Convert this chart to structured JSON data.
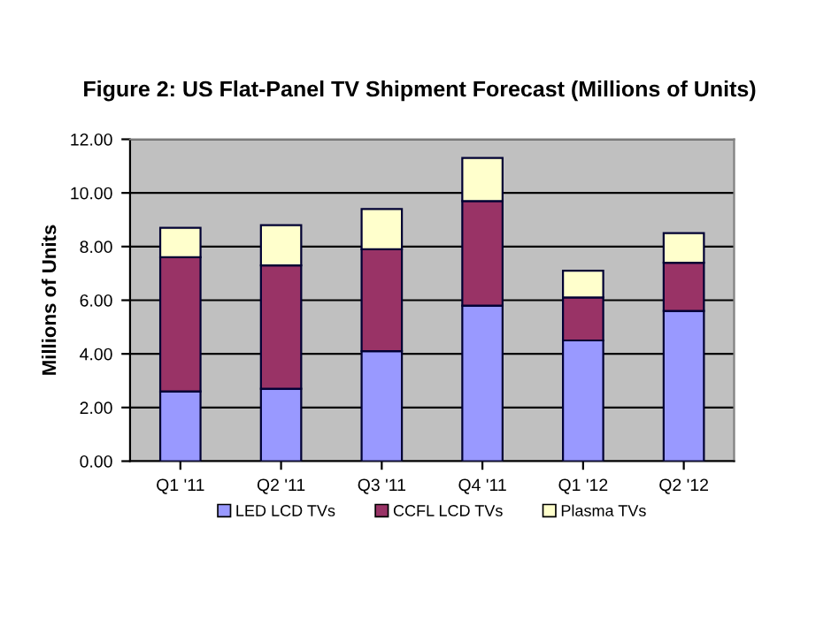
{
  "chart_data": {
    "type": "bar",
    "title": "Figure 2: US Flat-Panel TV Shipment Forecast (Millions of Units)",
    "ylabel": "Millions of Units",
    "categories": [
      "Q1 '11",
      "Q2 '11",
      "Q3 '11",
      "Q4 '11",
      "Q1 '12",
      "Q2 '12"
    ],
    "stacked": true,
    "series": [
      {
        "name": "LED LCD TVs",
        "color": "#9999ff",
        "values": [
          2.6,
          2.7,
          4.1,
          5.8,
          4.5,
          5.6
        ]
      },
      {
        "name": "CCFL LCD TVs",
        "color": "#993366",
        "values": [
          5.0,
          4.6,
          3.8,
          3.9,
          1.6,
          1.8
        ]
      },
      {
        "name": "Plasma TVs",
        "color": "#ffffcc",
        "values": [
          1.1,
          1.5,
          1.5,
          1.6,
          1.0,
          1.1
        ]
      }
    ],
    "ylim": [
      0,
      12
    ],
    "yticks": [
      {
        "value": 0,
        "label": "0.00"
      },
      {
        "value": 2,
        "label": "2.00"
      },
      {
        "value": 4,
        "label": "4.00"
      },
      {
        "value": 6,
        "label": "6.00"
      },
      {
        "value": 8,
        "label": "8.00"
      },
      {
        "value": 10,
        "label": "10.00"
      },
      {
        "value": 12,
        "label": "12.00"
      }
    ],
    "grid": "y",
    "legend": "bottom"
  }
}
